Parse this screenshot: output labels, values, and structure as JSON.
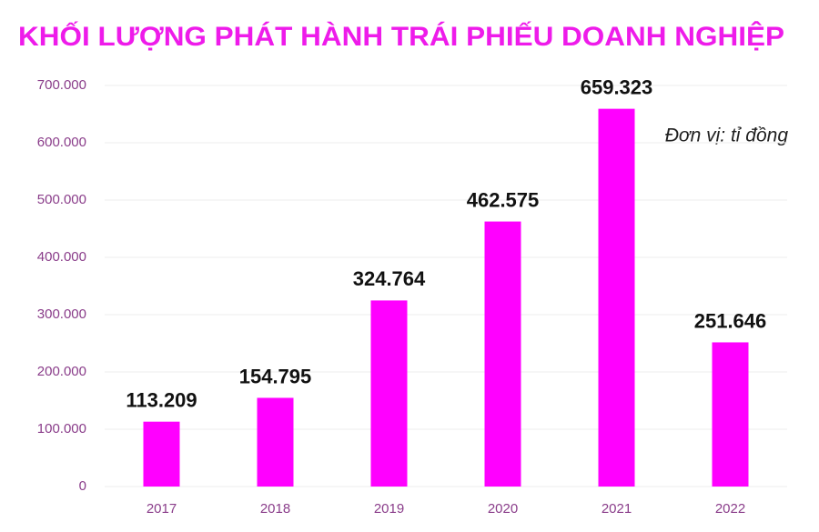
{
  "chart_data": {
    "type": "bar",
    "title": "KHỐI LƯỢNG PHÁT HÀNH TRÁI PHIẾU DOANH NGHIỆP",
    "annotation": "Đơn vị: tỉ đồng",
    "categories": [
      "2017",
      "2018",
      "2019",
      "2020",
      "2021",
      "2022"
    ],
    "values": [
      113209,
      154795,
      324764,
      462575,
      659323,
      251646
    ],
    "value_labels": [
      "113.209",
      "154.795",
      "324.764",
      "462.575",
      "659.323",
      "251.646"
    ],
    "color": "#ff00ff",
    "title_color": "#ee1bea",
    "ylim": [
      0,
      700000
    ],
    "yticks": [
      0,
      {
        "value": 100000,
        "label": "100.000"
      },
      {
        "value": 200000,
        "label": "200.000"
      },
      {
        "value": 300000,
        "label": "300.000"
      },
      {
        "value": 400000,
        "label": "400.000"
      },
      {
        "value": 500000,
        "label": "500.000"
      },
      {
        "value": 600000,
        "label": "600.000"
      },
      {
        "value": 700000,
        "label": "700.000"
      }
    ],
    "grid": true
  }
}
